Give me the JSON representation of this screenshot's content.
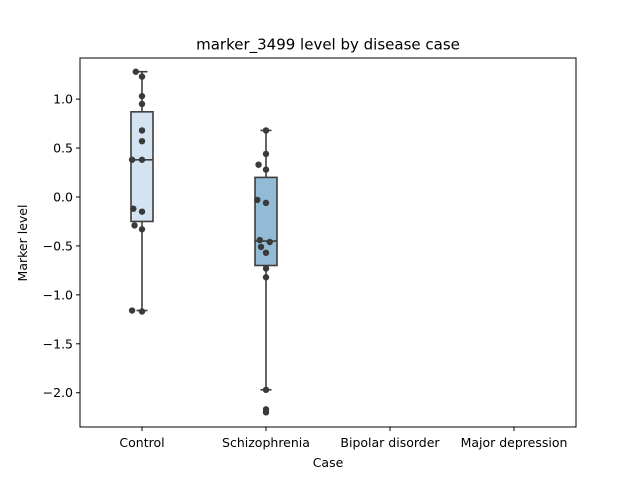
{
  "chart_data": {
    "type": "box",
    "title": "marker_3499 level by disease case",
    "xlabel": "Case",
    "ylabel": "Marker level",
    "categories": [
      "Control",
      "Schizophrenia",
      "Bipolar disorder",
      "Major depression"
    ],
    "ylim": [
      -2.35,
      1.42
    ],
    "yticks": [
      1.0,
      0.5,
      0.0,
      -0.5,
      -1.0,
      -1.5,
      -2.0
    ],
    "ytick_labels": [
      "1.0",
      "0.5",
      "0.0",
      "−0.5",
      "−1.0",
      "−1.5",
      "−2.0"
    ],
    "grid": false,
    "colors": {
      "Control": "#d4e3f1",
      "Schizophrenia": "#92bcd6",
      "box_edge": "#3d3d3d",
      "points": "#3a3a3a"
    },
    "boxes": [
      {
        "category": "Control",
        "q1": -0.25,
        "median": 0.38,
        "q3": 0.87,
        "whisker_low": -1.16,
        "whisker_high": 1.28,
        "outliers": [],
        "points": [
          [
            -0.05,
            1.28
          ],
          [
            0.0,
            1.23
          ],
          [
            0.0,
            1.03
          ],
          [
            0.0,
            0.95
          ],
          [
            0.0,
            0.68
          ],
          [
            0.0,
            0.57
          ],
          [
            -0.08,
            0.38
          ],
          [
            0.0,
            0.38
          ],
          [
            -0.07,
            -0.12
          ],
          [
            0.0,
            -0.15
          ],
          [
            -0.06,
            -0.29
          ],
          [
            0.0,
            -0.33
          ],
          [
            -0.08,
            -1.16
          ],
          [
            0.0,
            -1.17
          ]
        ]
      },
      {
        "category": "Schizophrenia",
        "q1": -0.7,
        "median": -0.45,
        "q3": 0.2,
        "whisker_low": -1.97,
        "whisker_high": 0.68,
        "outliers": [
          -2.18
        ],
        "points": [
          [
            0.0,
            0.68
          ],
          [
            0.0,
            0.44
          ],
          [
            -0.06,
            0.33
          ],
          [
            0.0,
            0.28
          ],
          [
            -0.07,
            -0.03
          ],
          [
            0.0,
            -0.06
          ],
          [
            -0.05,
            -0.44
          ],
          [
            0.03,
            -0.46
          ],
          [
            -0.04,
            -0.51
          ],
          [
            0.0,
            -0.57
          ],
          [
            0.0,
            -0.73
          ],
          [
            0.0,
            -0.82
          ],
          [
            0.0,
            -1.97
          ],
          [
            0.0,
            -2.17
          ],
          [
            0.0,
            -2.2
          ]
        ]
      }
    ]
  }
}
